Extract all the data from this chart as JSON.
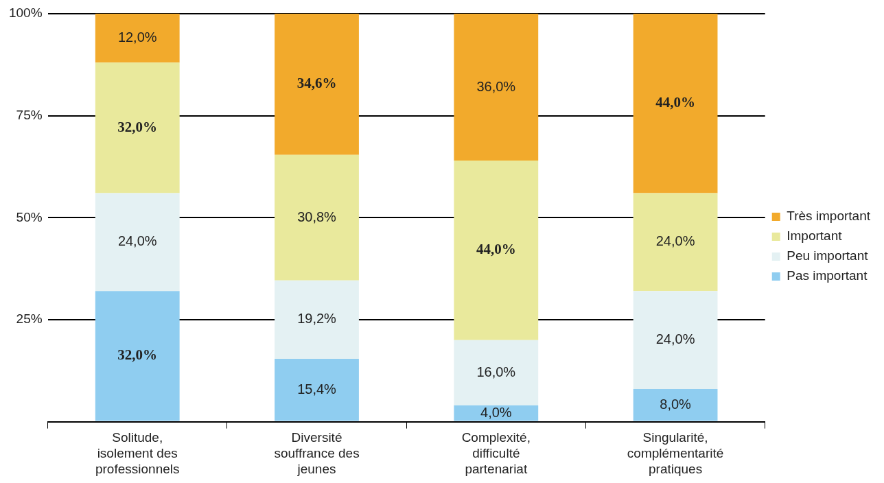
{
  "chart_data": {
    "type": "bar",
    "stacked": true,
    "categories": [
      "Solitude, isolement des professionnels",
      "Diversité souffrance des jeunes",
      "Complexité, difficulté partenariat",
      "Singularité, complémentarité pratiques"
    ],
    "series": [
      {
        "name": "Pas important",
        "color": "#8fcdf0",
        "values": [
          32,
          15.4,
          4,
          8
        ],
        "value_labels": [
          "32,0%",
          "15,4%",
          "4,0%",
          "8,0%"
        ]
      },
      {
        "name": "Peu important",
        "color": "#e4f1f3",
        "values": [
          24,
          19.2,
          16,
          24
        ],
        "value_labels": [
          "24,0%",
          "19,2%",
          "16,0%",
          "24,0%"
        ]
      },
      {
        "name": "Important",
        "color": "#e9e99c",
        "values": [
          32,
          30.8,
          44,
          24
        ],
        "value_labels": [
          "32,0%",
          "30,8%",
          "44,0%",
          "24,0%"
        ]
      },
      {
        "name": "Très important",
        "color": "#f2aa2c",
        "values": [
          12,
          34.6,
          36,
          44
        ],
        "value_labels": [
          "12,0%",
          "34,6%",
          "36,0%",
          "44,0%"
        ]
      }
    ],
    "ylim": [
      0,
      100
    ],
    "yticks": [
      {
        "value": 0,
        "label": null
      },
      {
        "value": 25,
        "label": "25%"
      },
      {
        "value": 50,
        "label": "50%"
      },
      {
        "value": 75,
        "label": "75%"
      },
      {
        "value": 100,
        "label": "100%"
      }
    ],
    "grid": "y",
    "legend": "right"
  }
}
